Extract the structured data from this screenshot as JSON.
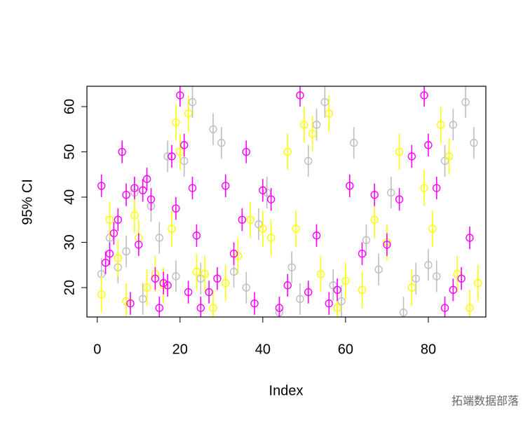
{
  "chart_data": {
    "type": "errorbar",
    "x_label": "Index",
    "y_label": "95% CI",
    "xlim": [
      -2.5,
      93.9
    ],
    "ylim": [
      13.5,
      64.5
    ],
    "xticks": [
      0,
      20,
      40,
      60,
      80
    ],
    "yticks": [
      20,
      30,
      40,
      50,
      60
    ],
    "series": [
      {
        "color": "#bebebe",
        "error": 3.5,
        "x": [
          1,
          3,
          5,
          7,
          9,
          11,
          13,
          15,
          17,
          19,
          21,
          23,
          25,
          28,
          30,
          33,
          36,
          39,
          41,
          44,
          47,
          49,
          51,
          53,
          55,
          57,
          59,
          62,
          65,
          68,
          71,
          74,
          77,
          80,
          82,
          84,
          86,
          89,
          91
        ],
        "values": [
          23,
          31,
          24.5,
          28,
          41,
          17.5,
          38,
          31,
          49,
          22.5,
          48,
          61,
          22,
          55,
          52,
          23.5,
          20,
          34,
          41,
          14.5,
          24.5,
          17.5,
          48,
          56,
          61,
          20.5,
          17,
          52,
          30.5,
          24,
          41,
          14.5,
          22,
          25,
          22.5,
          48,
          56,
          61,
          52
        ]
      },
      {
        "color": "#ffff00",
        "error": 4,
        "x": [
          1,
          3,
          5,
          7,
          9,
          10,
          12,
          14,
          16,
          18,
          19,
          20,
          22,
          24,
          26,
          28,
          31,
          34,
          37,
          40,
          42,
          46,
          48,
          50,
          52,
          54,
          56,
          58,
          60,
          64,
          67,
          70,
          73,
          76,
          79,
          81,
          83,
          85,
          87,
          90,
          92
        ],
        "values": [
          18.5,
          35,
          26.5,
          17,
          36,
          31,
          20,
          23,
          20.5,
          33,
          56.5,
          50,
          58.5,
          23.5,
          23,
          15.5,
          21,
          27,
          35,
          33,
          31,
          50,
          33,
          56,
          54,
          23,
          58.5,
          15.5,
          21.5,
          19.5,
          35,
          30,
          50,
          20,
          42,
          33,
          56,
          49,
          23,
          15.5,
          21
        ]
      },
      {
        "color": "#ff00ff",
        "error": 2.5,
        "x": [
          1,
          2,
          3,
          4,
          5,
          6,
          7,
          8,
          9,
          10,
          11,
          12,
          13,
          14,
          15,
          16,
          17,
          18,
          19,
          20,
          21,
          22,
          23,
          24,
          25,
          27,
          29,
          31,
          33,
          35,
          36,
          38,
          40,
          42,
          44,
          46,
          49,
          51,
          53,
          56,
          58,
          61,
          64,
          67,
          70,
          73,
          76,
          79,
          80,
          82,
          84,
          86,
          88,
          90
        ],
        "values": [
          42.5,
          25.5,
          27.5,
          32,
          35,
          50,
          40.5,
          16.5,
          42,
          29.5,
          41.5,
          44,
          39.5,
          22,
          15.5,
          21,
          20.5,
          49,
          37.5,
          62.5,
          51.5,
          19,
          42,
          31.5,
          15.5,
          19,
          22,
          42.5,
          27.5,
          35,
          50,
          16.5,
          41.5,
          39.5,
          15.5,
          20.5,
          62.5,
          19,
          31.5,
          16.5,
          19.5,
          42.5,
          27.5,
          40.5,
          29.5,
          39.5,
          49,
          62.5,
          51.5,
          42,
          15.5,
          19.5,
          22,
          31
        ]
      }
    ]
  },
  "watermark": "拓端数据部落"
}
